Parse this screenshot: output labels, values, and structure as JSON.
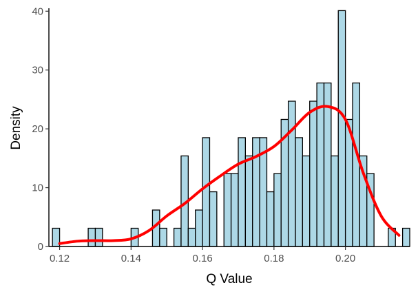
{
  "chart_data": {
    "type": "bar",
    "title": "",
    "xlabel": "Q Value",
    "ylabel": "Density",
    "xlim": [
      0.117,
      0.218
    ],
    "ylim": [
      0,
      40.5
    ],
    "x_ticks": [
      0.12,
      0.14,
      0.16,
      0.18,
      0.2
    ],
    "x_tick_labels": [
      "0.12",
      "0.14",
      "0.16",
      "0.18",
      "0.20"
    ],
    "y_ticks": [
      0,
      10,
      20,
      30,
      40
    ],
    "y_tick_labels": [
      "0",
      "10",
      "20",
      "30",
      "40"
    ],
    "grid": false,
    "legend": "none",
    "bin_width": 0.002,
    "bins_start": [
      0.118,
      0.12,
      0.122,
      0.124,
      0.126,
      0.128,
      0.13,
      0.132,
      0.134,
      0.136,
      0.138,
      0.14,
      0.142,
      0.144,
      0.146,
      0.148,
      0.15,
      0.152,
      0.154,
      0.156,
      0.158,
      0.16,
      0.162,
      0.164,
      0.166,
      0.168,
      0.17,
      0.172,
      0.174,
      0.176,
      0.178,
      0.18,
      0.182,
      0.184,
      0.186,
      0.188,
      0.19,
      0.192,
      0.194,
      0.196,
      0.198,
      0.2,
      0.202,
      0.204,
      0.206,
      0.208,
      0.21,
      0.212,
      0.214,
      0.216
    ],
    "values": [
      3.1,
      0,
      0,
      0,
      0,
      3.1,
      3.1,
      0,
      0,
      0,
      0,
      3.1,
      0,
      0,
      6.2,
      3.1,
      0,
      3.1,
      15.4,
      3.1,
      6.2,
      18.5,
      9.3,
      0,
      12.4,
      12.4,
      18.5,
      15.4,
      18.5,
      18.5,
      9.3,
      12.4,
      21.6,
      24.7,
      18.5,
      15.4,
      24.7,
      27.8,
      27.8,
      15.4,
      40.1,
      21.6,
      27.8,
      15.4,
      12.4,
      0,
      0,
      3.1,
      0,
      3.1
    ],
    "series": [
      {
        "name": "",
        "type": "density",
        "x": [
          0.12,
          0.125,
          0.13,
          0.135,
          0.14,
          0.145,
          0.15,
          0.155,
          0.16,
          0.165,
          0.17,
          0.175,
          0.18,
          0.185,
          0.19,
          0.195,
          0.2,
          0.205,
          0.21,
          0.215
        ],
        "y": [
          0.5,
          0.9,
          1.0,
          1.0,
          1.3,
          2.7,
          5.2,
          7.3,
          9.8,
          12.0,
          14.0,
          15.3,
          17.0,
          19.8,
          22.8,
          23.8,
          21.6,
          12.5,
          5.2,
          1.9
        ]
      }
    ],
    "colors": {
      "bar_fill": "#ADD8E6",
      "bar_outline": "#000000",
      "density_line": "#FF0000",
      "axis": "#000000",
      "tick_text": "#4D4D4D"
    }
  }
}
